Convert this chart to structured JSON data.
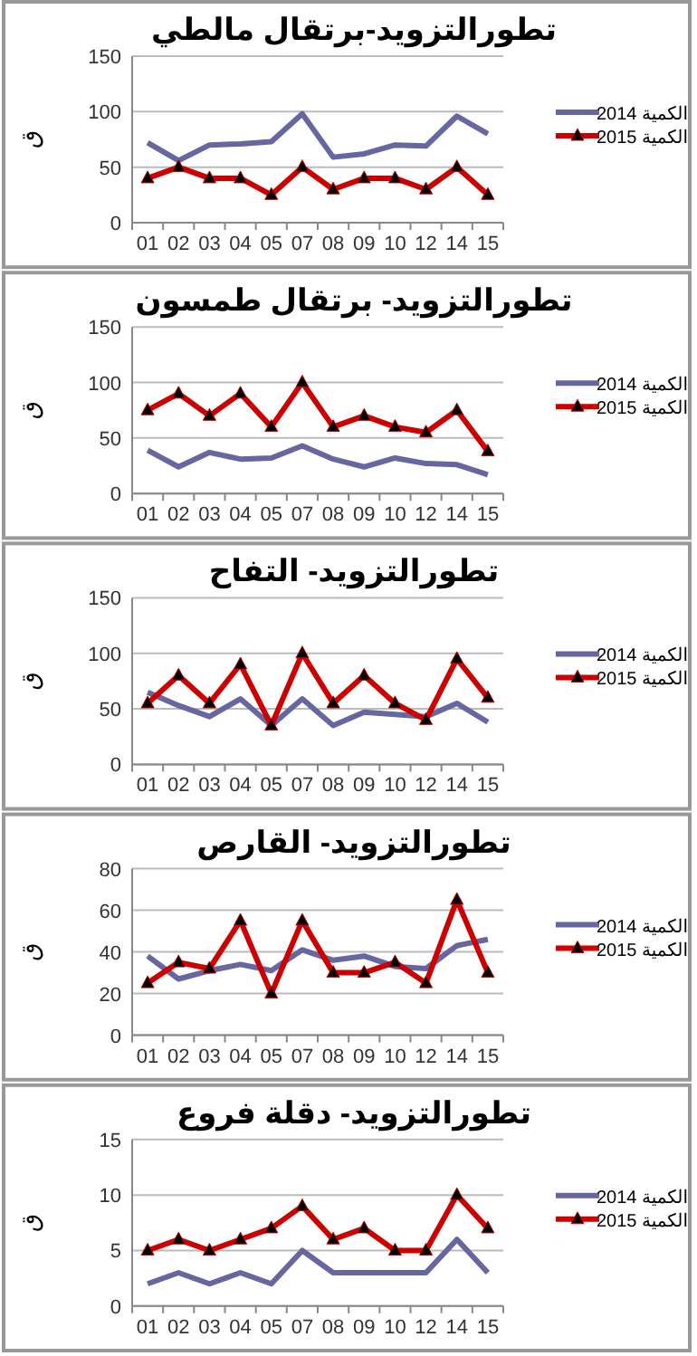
{
  "chart_data": [
    {
      "type": "line",
      "title": "تطورالتزويد-برتقال مالطي",
      "ylabel": "ق",
      "categories": [
        "01",
        "02",
        "03",
        "04",
        "05",
        "07",
        "08",
        "09",
        "10",
        "12",
        "14",
        "15"
      ],
      "ylim": [
        0,
        150
      ],
      "yticks": [
        0,
        50,
        100,
        150
      ],
      "grid": "y",
      "legend": "right",
      "series": [
        {
          "name": "الكمية 2014",
          "color": "#6666a0",
          "marker": "none",
          "values": [
            72,
            56,
            70,
            71,
            73,
            98,
            59,
            62,
            70,
            69,
            96,
            80
          ]
        },
        {
          "name": "الكمية 2015",
          "color": "#cc0000",
          "marker": "triangle",
          "values": [
            40,
            50,
            40,
            40,
            25,
            50,
            30,
            40,
            40,
            30,
            50,
            25
          ]
        }
      ]
    },
    {
      "type": "line",
      "title": "تطورالتزويد- برتقال طمسون",
      "ylabel": "ق",
      "categories": [
        "01",
        "02",
        "03",
        "04",
        "05",
        "07",
        "08",
        "09",
        "10",
        "12",
        "14",
        "15"
      ],
      "ylim": [
        0,
        150
      ],
      "yticks": [
        0,
        50,
        100,
        150
      ],
      "grid": "y",
      "legend": "right",
      "series": [
        {
          "name": "الكمية 2014",
          "color": "#6666a0",
          "marker": "none",
          "values": [
            39,
            24,
            37,
            31,
            32,
            43,
            31,
            24,
            32,
            27,
            26,
            17
          ]
        },
        {
          "name": "الكمية 2015",
          "color": "#cc0000",
          "marker": "triangle",
          "values": [
            75,
            90,
            70,
            90,
            60,
            100,
            60,
            70,
            60,
            55,
            75,
            38
          ]
        }
      ]
    },
    {
      "type": "line",
      "title": "تطورالتزويد- التفاح",
      "ylabel": "ق",
      "categories": [
        "01",
        "02",
        "03",
        "04",
        "05",
        "07",
        "08",
        "09",
        "10",
        "12",
        "14",
        "15"
      ],
      "ylim": [
        0,
        150
      ],
      "yticks": [
        0,
        50,
        100,
        150
      ],
      "grid": "y",
      "legend": "right",
      "series": [
        {
          "name": "الكمية 2014",
          "color": "#6666a0",
          "marker": "none",
          "values": [
            65,
            53,
            43,
            59,
            35,
            59,
            35,
            47,
            45,
            43,
            55,
            38
          ]
        },
        {
          "name": "الكمية 2015",
          "color": "#cc0000",
          "marker": "triangle",
          "values": [
            55,
            80,
            55,
            90,
            35,
            100,
            55,
            80,
            55,
            40,
            95,
            60
          ]
        }
      ]
    },
    {
      "type": "line",
      "title": "تطورالتزويد- القارص",
      "ylabel": "ق",
      "categories": [
        "01",
        "02",
        "03",
        "04",
        "05",
        "07",
        "08",
        "09",
        "10",
        "12",
        "14",
        "15"
      ],
      "ylim": [
        0,
        80
      ],
      "yticks": [
        0,
        20,
        40,
        60,
        80
      ],
      "grid": "y",
      "legend": "right",
      "series": [
        {
          "name": "الكمية 2014",
          "color": "#6666a0",
          "marker": "none",
          "values": [
            38,
            27,
            31,
            34,
            31,
            41,
            36,
            38,
            33,
            32,
            43,
            46
          ]
        },
        {
          "name": "الكمية 2015",
          "color": "#cc0000",
          "marker": "triangle",
          "values": [
            25,
            35,
            32,
            55,
            20,
            55,
            30,
            30,
            35,
            25,
            65,
            30
          ]
        }
      ]
    },
    {
      "type": "line",
      "title": "تطورالتزويد- دقلة فروع",
      "ylabel": "ق",
      "categories": [
        "01",
        "02",
        "03",
        "04",
        "05",
        "07",
        "08",
        "09",
        "10",
        "12",
        "14",
        "15"
      ],
      "ylim": [
        0,
        15
      ],
      "yticks": [
        0,
        5,
        10,
        15
      ],
      "grid": "y",
      "legend": "right",
      "series": [
        {
          "name": "الكمية 2014",
          "color": "#6666a0",
          "marker": "none",
          "values": [
            2,
            3,
            2,
            3,
            2,
            5,
            3,
            3,
            3,
            3,
            6,
            3
          ]
        },
        {
          "name": "الكمية 2015",
          "color": "#cc0000",
          "marker": "triangle",
          "values": [
            5,
            6,
            5,
            6,
            7,
            9,
            6,
            7,
            5,
            5,
            10,
            7
          ]
        }
      ]
    }
  ]
}
